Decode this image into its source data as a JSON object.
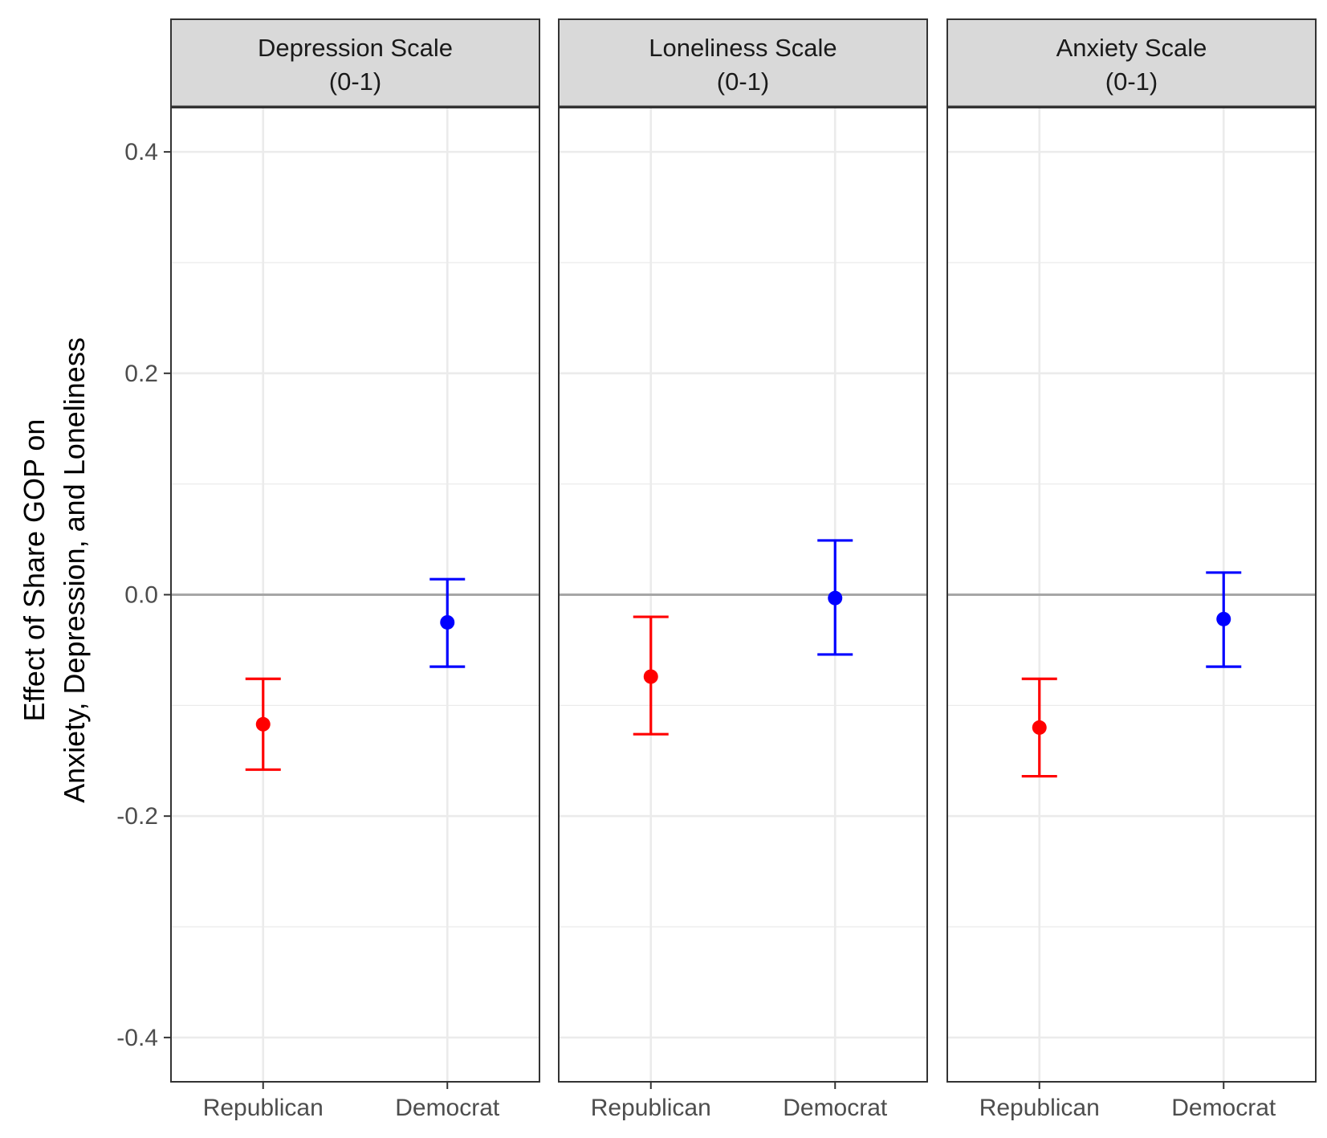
{
  "chart_data": {
    "type": "errorbar",
    "ylabel": [
      "Effect of Share GOP on",
      "Anxiety, Depression, and Loneliness"
    ],
    "xlabel": "",
    "ylim": [
      -0.44,
      0.44
    ],
    "yticks": [
      0.4,
      0.2,
      0.0,
      -0.2,
      -0.4
    ],
    "ytick_labels": [
      "0.4",
      "0.2",
      "0.0",
      "-0.2",
      "-0.4"
    ],
    "reference_line": 0.0,
    "grid": true,
    "categories": [
      "Republican",
      "Democrat"
    ],
    "colors": {
      "Republican": "#ff0000",
      "Democrat": "#0000ff"
    },
    "panels": [
      {
        "strip": [
          "Depression Scale",
          "(0-1)"
        ],
        "points": [
          {
            "category": "Republican",
            "estimate": -0.117,
            "lower": -0.158,
            "upper": -0.076
          },
          {
            "category": "Democrat",
            "estimate": -0.025,
            "lower": -0.065,
            "upper": 0.014
          }
        ]
      },
      {
        "strip": [
          "Loneliness Scale",
          "(0-1)"
        ],
        "points": [
          {
            "category": "Republican",
            "estimate": -0.074,
            "lower": -0.126,
            "upper": -0.02
          },
          {
            "category": "Democrat",
            "estimate": -0.003,
            "lower": -0.054,
            "upper": 0.049
          }
        ]
      },
      {
        "strip": [
          "Anxiety Scale",
          "(0-1)"
        ],
        "points": [
          {
            "category": "Republican",
            "estimate": -0.12,
            "lower": -0.164,
            "upper": -0.076
          },
          {
            "category": "Democrat",
            "estimate": -0.022,
            "lower": -0.065,
            "upper": 0.02
          }
        ]
      }
    ]
  }
}
